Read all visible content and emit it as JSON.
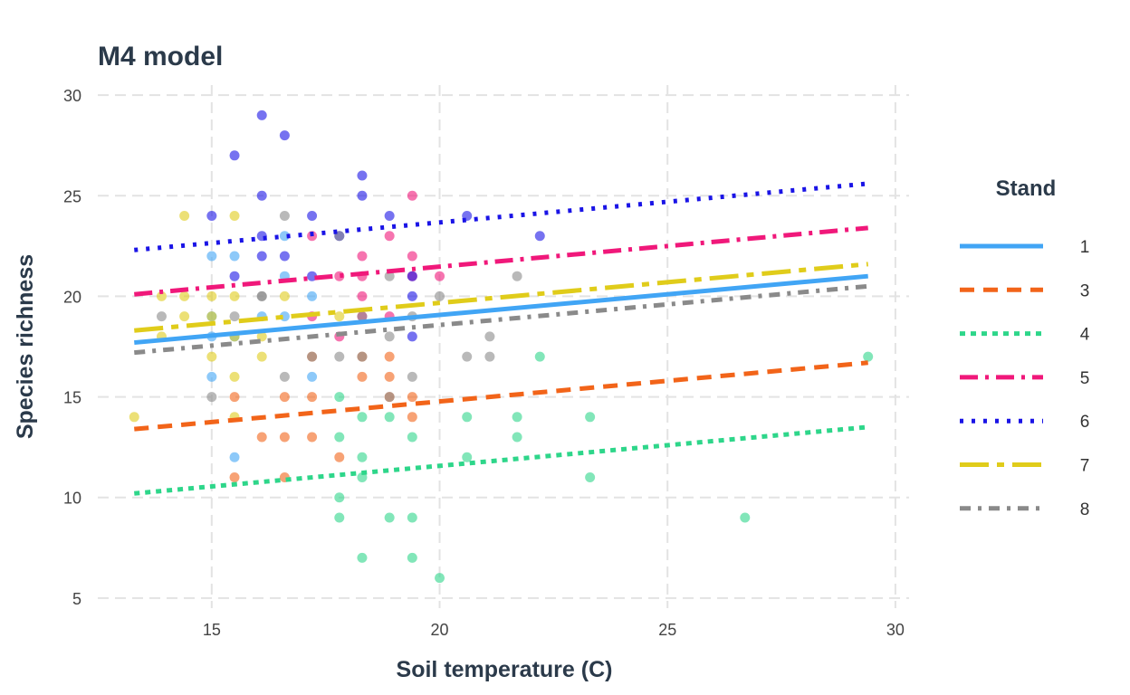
{
  "chart_data": {
    "type": "scatter",
    "title": "M4 model",
    "xlabel": "Soil temperature (C)",
    "ylabel": "Species richness",
    "xlim": [
      12.5,
      30.3
    ],
    "ylim": [
      4.5,
      30.5
    ],
    "xticks": [
      15,
      20,
      25,
      30
    ],
    "yticks": [
      5,
      10,
      15,
      20,
      25,
      30
    ],
    "grid": true,
    "legend": {
      "title": "Stand",
      "placement": "right"
    },
    "series": [
      {
        "name": "1",
        "color": "#41a5f5",
        "line": "solid",
        "fit": [
          [
            13.3,
            17.7
          ],
          [
            29.4,
            21.0
          ]
        ],
        "points": [
          [
            15.0,
            22
          ],
          [
            15.5,
            22
          ],
          [
            15.0,
            19
          ],
          [
            15.0,
            18
          ],
          [
            15.0,
            16
          ],
          [
            15.5,
            12
          ],
          [
            16.1,
            19
          ],
          [
            16.6,
            23
          ],
          [
            16.6,
            21
          ],
          [
            16.6,
            19
          ],
          [
            17.2,
            20
          ],
          [
            17.2,
            16
          ],
          [
            15.5,
            18
          ]
        ]
      },
      {
        "name": "3",
        "color": "#f26419",
        "line": "dashed",
        "fit": [
          [
            13.3,
            13.4
          ],
          [
            29.4,
            16.7
          ]
        ],
        "points": [
          [
            15.5,
            15
          ],
          [
            15.5,
            11
          ],
          [
            16.1,
            13
          ],
          [
            16.6,
            15
          ],
          [
            16.6,
            13
          ],
          [
            16.6,
            11
          ],
          [
            17.2,
            15
          ],
          [
            17.2,
            13
          ],
          [
            17.8,
            12
          ],
          [
            18.3,
            17
          ],
          [
            18.3,
            16
          ],
          [
            18.9,
            17
          ],
          [
            18.9,
            16
          ],
          [
            18.9,
            15
          ],
          [
            19.4,
            15
          ],
          [
            19.4,
            14
          ],
          [
            17.2,
            17
          ]
        ]
      },
      {
        "name": "4",
        "color": "#2ed68a",
        "line": "dotted",
        "fit": [
          [
            13.3,
            10.2
          ],
          [
            29.4,
            13.5
          ]
        ],
        "points": [
          [
            17.8,
            15
          ],
          [
            17.8,
            13
          ],
          [
            17.8,
            10
          ],
          [
            17.8,
            9
          ],
          [
            18.3,
            14
          ],
          [
            18.3,
            12
          ],
          [
            18.3,
            11
          ],
          [
            18.3,
            7
          ],
          [
            18.9,
            14
          ],
          [
            18.9,
            9
          ],
          [
            19.4,
            13
          ],
          [
            19.4,
            9
          ],
          [
            19.4,
            7
          ],
          [
            20.0,
            6
          ],
          [
            20.6,
            14
          ],
          [
            20.6,
            12
          ],
          [
            21.7,
            14
          ],
          [
            21.7,
            13
          ],
          [
            22.2,
            17
          ],
          [
            23.3,
            14
          ],
          [
            23.3,
            11
          ],
          [
            26.7,
            9
          ],
          [
            29.4,
            17
          ]
        ]
      },
      {
        "name": "5",
        "color": "#f0187a",
        "line": "dashdot",
        "fit": [
          [
            13.3,
            20.1
          ],
          [
            29.4,
            23.4
          ]
        ],
        "points": [
          [
            17.2,
            23
          ],
          [
            17.2,
            19
          ],
          [
            17.8,
            21
          ],
          [
            17.8,
            18
          ],
          [
            18.3,
            22
          ],
          [
            18.3,
            21
          ],
          [
            18.3,
            20
          ],
          [
            18.3,
            19
          ],
          [
            18.9,
            23
          ],
          [
            18.9,
            19
          ],
          [
            19.4,
            25
          ],
          [
            19.4,
            22
          ],
          [
            19.4,
            21
          ],
          [
            20.0,
            21
          ]
        ]
      },
      {
        "name": "6",
        "color": "#1a14e6",
        "line": "dotted-fine",
        "fit": [
          [
            13.3,
            22.3
          ],
          [
            29.4,
            25.6
          ]
        ],
        "points": [
          [
            15.0,
            24
          ],
          [
            15.5,
            27
          ],
          [
            15.5,
            21
          ],
          [
            16.1,
            29
          ],
          [
            16.1,
            25
          ],
          [
            16.1,
            23
          ],
          [
            16.1,
            22
          ],
          [
            16.6,
            28
          ],
          [
            16.6,
            22
          ],
          [
            17.2,
            24
          ],
          [
            17.2,
            21
          ],
          [
            17.8,
            23
          ],
          [
            18.3,
            26
          ],
          [
            18.3,
            25
          ],
          [
            18.9,
            24
          ],
          [
            19.4,
            21
          ],
          [
            19.4,
            20
          ],
          [
            19.4,
            18
          ],
          [
            20.6,
            24
          ],
          [
            22.2,
            23
          ]
        ]
      },
      {
        "name": "7",
        "color": "#e0cc1a",
        "line": "longdash",
        "fit": [
          [
            13.3,
            18.3
          ],
          [
            29.4,
            21.6
          ]
        ],
        "points": [
          [
            13.3,
            14
          ],
          [
            13.9,
            20
          ],
          [
            13.9,
            18
          ],
          [
            14.4,
            24
          ],
          [
            14.4,
            20
          ],
          [
            14.4,
            19
          ],
          [
            15.0,
            20
          ],
          [
            15.0,
            17
          ],
          [
            15.5,
            24
          ],
          [
            15.5,
            20
          ],
          [
            15.5,
            18
          ],
          [
            15.5,
            16
          ],
          [
            15.5,
            14
          ],
          [
            16.1,
            18
          ],
          [
            16.1,
            17
          ],
          [
            16.6,
            20
          ],
          [
            17.8,
            19
          ],
          [
            15.0,
            19
          ]
        ]
      },
      {
        "name": "8",
        "color": "#8a8a8a",
        "line": "twodash",
        "fit": [
          [
            13.3,
            17.2
          ],
          [
            29.4,
            20.5
          ]
        ],
        "points": [
          [
            13.9,
            19
          ],
          [
            15.0,
            15
          ],
          [
            15.5,
            19
          ],
          [
            16.1,
            20
          ],
          [
            16.6,
            24
          ],
          [
            16.6,
            16
          ],
          [
            17.2,
            17
          ],
          [
            17.8,
            23
          ],
          [
            17.8,
            17
          ],
          [
            18.3,
            19
          ],
          [
            18.3,
            17
          ],
          [
            18.9,
            21
          ],
          [
            18.9,
            18
          ],
          [
            18.9,
            15
          ],
          [
            19.4,
            19
          ],
          [
            19.4,
            16
          ],
          [
            20.0,
            20
          ],
          [
            20.6,
            17
          ],
          [
            21.1,
            18
          ],
          [
            21.1,
            17
          ],
          [
            21.7,
            21
          ],
          [
            16.1,
            20
          ]
        ]
      }
    ]
  }
}
